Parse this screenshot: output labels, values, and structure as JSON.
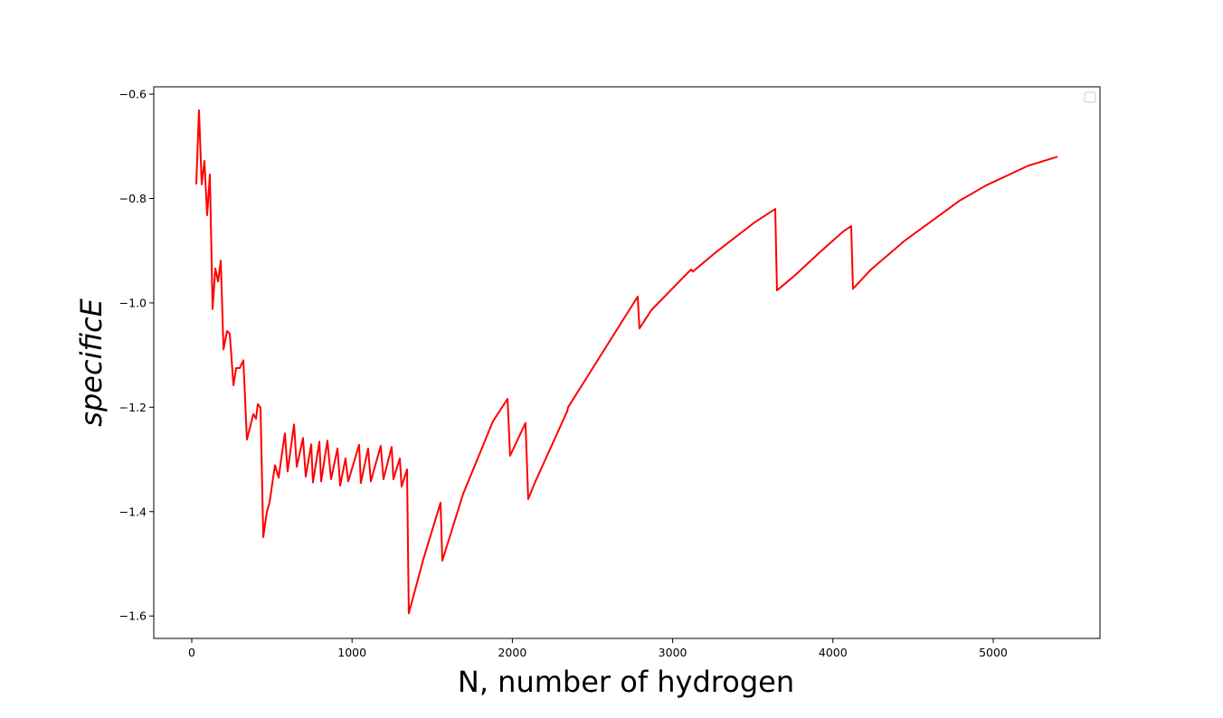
{
  "chart_data": {
    "type": "line",
    "xlabel": "N, number of hydrogen",
    "ylabel": "specificE",
    "color": "#ff0000",
    "xlim": [
      -237,
      5666
    ],
    "ylim": [
      -1.643,
      -0.586
    ],
    "xticks": [
      0,
      1000,
      2000,
      3000,
      4000,
      5000
    ],
    "yticks": [
      {
        "value": -1.6,
        "label": "−1.6"
      },
      {
        "value": -1.4,
        "label": "−1.4"
      },
      {
        "value": -1.2,
        "label": "−1.2"
      },
      {
        "value": -1.0,
        "label": "−1.0"
      },
      {
        "value": -0.8,
        "label": "−0.8"
      },
      {
        "value": -0.6,
        "label": "−0.6"
      }
    ],
    "x": [
      28,
      45,
      62,
      79,
      96,
      113,
      130,
      147,
      164,
      181,
      198,
      220,
      237,
      260,
      277,
      299,
      322,
      344,
      384,
      401,
      412,
      429,
      446,
      468,
      485,
      519,
      542,
      564,
      581,
      598,
      638,
      655,
      694,
      711,
      745,
      756,
      796,
      807,
      846,
      869,
      909,
      926,
      959,
      976,
      1044,
      1055,
      1100,
      1117,
      1179,
      1196,
      1247,
      1258,
      1298,
      1309,
      1343,
      1354,
      1445,
      1552,
      1563,
      1693,
      1879,
      1970,
      1986,
      2082,
      2099,
      2144,
      2342,
      2348,
      2444,
      2782,
      2793,
      2867,
      3070,
      3115,
      3126,
      3262,
      3510,
      3640,
      3651,
      3753,
      3911,
      4069,
      4114,
      4125,
      4238,
      4447,
      4786,
      4955,
      5220,
      5401
    ],
    "values": [
      -0.773,
      -0.631,
      -0.773,
      -0.728,
      -0.832,
      -0.754,
      -1.012,
      -0.934,
      -0.959,
      -0.919,
      -1.089,
      -1.054,
      -1.059,
      -1.158,
      -1.125,
      -1.125,
      -1.11,
      -1.262,
      -1.213,
      -1.222,
      -1.194,
      -1.201,
      -1.449,
      -1.401,
      -1.383,
      -1.311,
      -1.335,
      -1.286,
      -1.25,
      -1.323,
      -1.233,
      -1.314,
      -1.259,
      -1.333,
      -1.271,
      -1.344,
      -1.266,
      -1.342,
      -1.264,
      -1.338,
      -1.279,
      -1.35,
      -1.298,
      -1.342,
      -1.272,
      -1.345,
      -1.279,
      -1.342,
      -1.274,
      -1.338,
      -1.276,
      -1.338,
      -1.298,
      -1.352,
      -1.319,
      -1.595,
      -1.491,
      -1.383,
      -1.494,
      -1.366,
      -1.227,
      -1.184,
      -1.293,
      -1.23,
      -1.376,
      -1.342,
      -1.208,
      -1.2,
      -1.153,
      -0.988,
      -1.049,
      -1.014,
      -0.95,
      -0.936,
      -0.94,
      -0.905,
      -0.846,
      -0.82,
      -0.976,
      -0.95,
      -0.905,
      -0.862,
      -0.853,
      -0.973,
      -0.936,
      -0.881,
      -0.805,
      -0.775,
      -0.737,
      -0.72
    ]
  }
}
